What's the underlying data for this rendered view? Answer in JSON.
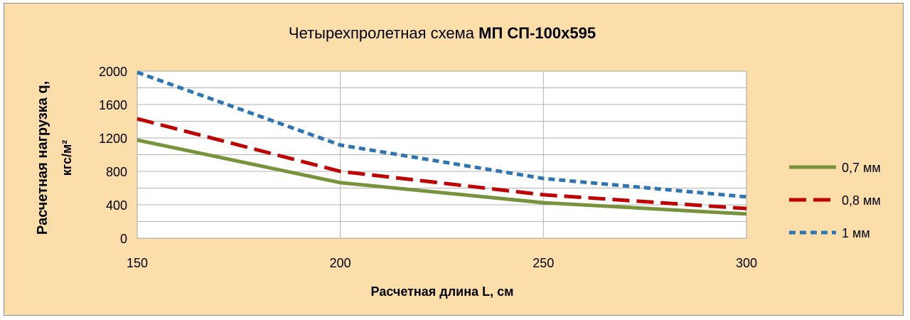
{
  "chart_data": {
    "type": "line",
    "title": {
      "prefix": "Четырехпролетная схема ",
      "bold": "МП СП-100х595"
    },
    "xlabel": "Расчетная длина L, см",
    "ylabel": {
      "line1": "Расчетная нагрузка q,",
      "line2": "кгс/м²"
    },
    "x": [
      150,
      200,
      250,
      300
    ],
    "xlim": [
      150,
      300
    ],
    "ylim": [
      0,
      2000
    ],
    "xticks": [
      "150",
      "200",
      "250",
      "300"
    ],
    "yticks": [
      "0",
      "400",
      "800",
      "1200",
      "1600",
      "2000"
    ],
    "y_minor_step": 200,
    "grid": true,
    "legend_position": "right",
    "series": [
      {
        "name": "0,7 мм",
        "values": [
          1175,
          665,
          425,
          290
        ],
        "color": "#77933c",
        "style": "solid"
      },
      {
        "name": "0,8 мм",
        "values": [
          1430,
          800,
          520,
          355
        ],
        "color": "#c00000",
        "style": "dash"
      },
      {
        "name": "1 мм",
        "values": [
          1985,
          1115,
          715,
          495
        ],
        "color": "#2e75b6",
        "style": "dot"
      }
    ]
  },
  "colors": {
    "background": "#fbdeaa",
    "plot_background": "#ffffff",
    "grid": "#b3b3b3"
  }
}
